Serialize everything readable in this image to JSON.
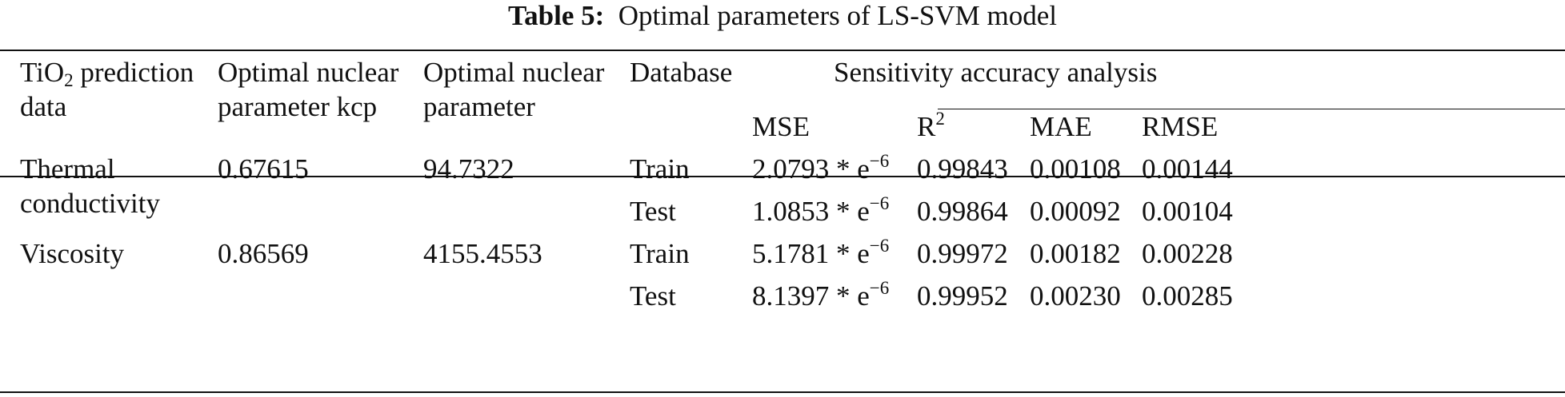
{
  "table": {
    "caption_label": "Table 5:",
    "caption_text": "Optimal parameters of LS-SVM model",
    "headers": {
      "col1_line1_pre": "TiO",
      "col1_line1_sub": "2",
      "col1_line1_post": " prediction",
      "col1_line2": "data",
      "col2_line1": "Optimal nuclear",
      "col2_line2": "parameter kcp",
      "col3_line1": "Optimal nuclear",
      "col3_line2": "parameter",
      "col4": "Database",
      "group": "Sensitivity accuracy analysis",
      "mse": "MSE",
      "r2_base": "R",
      "r2_sup": "2",
      "mae": "MAE",
      "rmse": "RMSE"
    },
    "rows": [
      {
        "data_line1": "Thermal",
        "data_line2": "conductivity",
        "kcp": "0.67615",
        "param": "94.7322",
        "database": "Train",
        "mse_base": "2.0793 * e",
        "mse_exp": "−6",
        "r2": "0.99843",
        "mae": "0.00108",
        "rmse": "0.00144"
      },
      {
        "database": "Test",
        "mse_base": "1.0853 * e",
        "mse_exp": "−6",
        "r2": "0.99864",
        "mae": "0.00092",
        "rmse": "0.00104"
      },
      {
        "data_line1": "Viscosity",
        "kcp": "0.86569",
        "param": "4155.4553",
        "database": "Train",
        "mse_base": "5.1781 * e",
        "mse_exp": "−6",
        "r2": "0.99972",
        "mae": "0.00182",
        "rmse": "0.00228"
      },
      {
        "database": "Test",
        "mse_base": "8.1397 * e",
        "mse_exp": "−6",
        "r2": "0.99952",
        "mae": "0.00230",
        "rmse": "0.00285"
      }
    ]
  }
}
